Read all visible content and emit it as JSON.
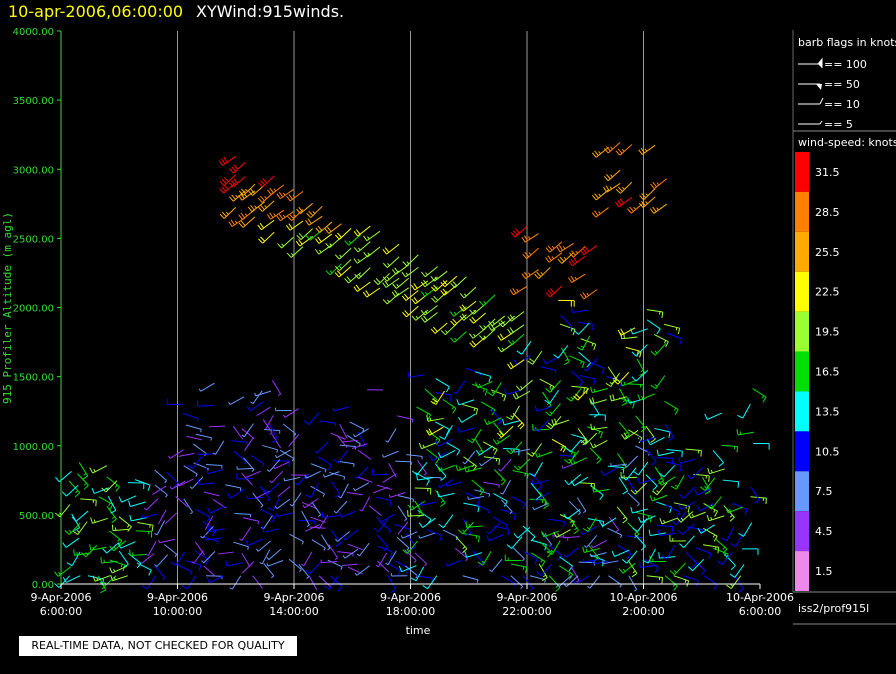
{
  "header": {
    "date": "10-apr-2006,06:00:00",
    "title": "XYWind:915winds."
  },
  "chart_data": {
    "type": "scatter",
    "subtype": "wind-barb time-height plot",
    "xlabel": "time",
    "ylabel": "915 Profiler Altitude (m agl)",
    "ylim": [
      0,
      4000
    ],
    "yticks": [
      "0.00",
      "500.00",
      "1000.00",
      "1500.00",
      "2000.00",
      "2500.00",
      "3000.00",
      "3500.00",
      "4000.00"
    ],
    "xticks": [
      {
        "date": "9-Apr-2006",
        "time": "6:00:00"
      },
      {
        "date": "9-Apr-2006",
        "time": "10:00:00"
      },
      {
        "date": "9-Apr-2006",
        "time": "14:00:00"
      },
      {
        "date": "9-Apr-2006",
        "time": "18:00:00"
      },
      {
        "date": "9-Apr-2006",
        "time": "22:00:00"
      },
      {
        "date": "10-Apr-2006",
        "time": "2:00:00"
      },
      {
        "date": "10-Apr-2006",
        "time": "6:00:00"
      }
    ],
    "xlim_hours": [
      0,
      24
    ],
    "grid": "vertical lines at ticks",
    "barb_legend": {
      "title": "barb flags in knots",
      "entries": [
        "== 100",
        "== 50",
        "== 10",
        "== 5"
      ]
    },
    "speed_legend": {
      "title": "wind-speed: knots",
      "bins": [
        {
          "label": "31.5",
          "color": "#ff0000"
        },
        {
          "label": "28.5",
          "color": "#ff7f00"
        },
        {
          "label": "25.5",
          "color": "#ffaa00"
        },
        {
          "label": "22.5",
          "color": "#ffff00"
        },
        {
          "label": "19.5",
          "color": "#99ff33"
        },
        {
          "label": "16.5",
          "color": "#00e000"
        },
        {
          "label": "13.5",
          "color": "#00ffff"
        },
        {
          "label": "10.5",
          "color": "#0000ff"
        },
        {
          "label": "7.5",
          "color": "#6699ff"
        },
        {
          "label": "4.5",
          "color": "#9933ff"
        },
        {
          "label": "1.5",
          "color": "#ee88ee"
        }
      ]
    },
    "dataset_label": "iss2/prof915l"
  },
  "footer": {
    "qc_note": "REAL-TIME DATA, NOT CHECKED FOR QUALITY"
  }
}
